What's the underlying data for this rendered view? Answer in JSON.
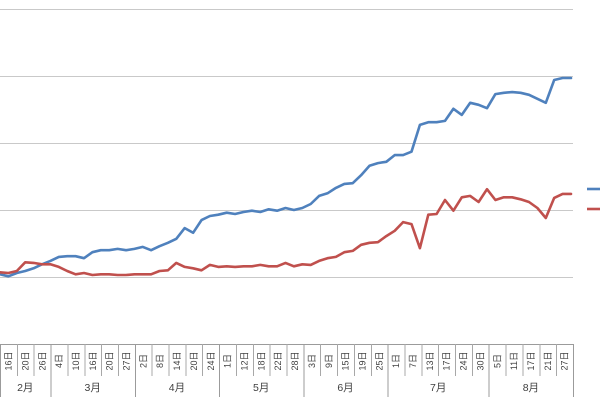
{
  "chart_data": {
    "type": "line",
    "title": "",
    "note": "left and right edges of chart are cropped; y-axis value labels and legend text not visible",
    "x_axis": {
      "tick_labels": [
        "16日",
        "20日",
        "26日",
        "4日",
        "10日",
        "16日",
        "20日",
        "27日",
        "2日",
        "8日",
        "14日",
        "20日",
        "24日",
        "1日",
        "12日",
        "18日",
        "22日",
        "28日",
        "3日",
        "9日",
        "15日",
        "19日",
        "25日",
        "1日",
        "7日",
        "13日",
        "17日",
        "24日",
        "30日",
        "5日",
        "11日",
        "17日",
        "21日",
        "27日"
      ],
      "month_groups": [
        {
          "label": "2月",
          "span": 3
        },
        {
          "label": "3月",
          "span": 5
        },
        {
          "label": "4月",
          "span": 5
        },
        {
          "label": "5月",
          "span": 5
        },
        {
          "label": "6月",
          "span": 5
        },
        {
          "label": "7月",
          "span": 6
        },
        {
          "label": "8月",
          "span": 5
        }
      ]
    },
    "y_axis": {
      "labels_visible": false,
      "gridlines": 5,
      "unit": "gridline-interval (axis labels cropped out of image)",
      "ylim": [
        0,
        5
      ]
    },
    "grid": true,
    "legend": {
      "position": "right",
      "clipped": true
    },
    "series": [
      {
        "id": "series-blue",
        "color": "#4f81bd",
        "values": [
          1.04,
          1.01,
          1.06,
          1.09,
          1.13,
          1.19,
          1.24,
          1.3,
          1.31,
          1.31,
          1.28,
          1.37,
          1.4,
          1.4,
          1.42,
          1.4,
          1.42,
          1.45,
          1.4,
          1.46,
          1.51,
          1.57,
          1.73,
          1.66,
          1.85,
          1.91,
          1.93,
          1.96,
          1.94,
          1.97,
          1.99,
          1.97,
          2.01,
          1.99,
          2.03,
          2.0,
          2.03,
          2.09,
          2.21,
          2.25,
          2.33,
          2.39,
          2.4,
          2.52,
          2.66,
          2.7,
          2.72,
          2.82,
          2.82,
          2.87,
          3.27,
          3.31,
          3.31,
          3.33,
          3.51,
          3.42,
          3.6,
          3.57,
          3.52,
          3.73,
          3.75,
          3.76,
          3.75,
          3.72,
          3.66,
          3.6,
          3.94,
          3.97,
          3.97
        ]
      },
      {
        "id": "series-red",
        "color": "#c0504d",
        "values": [
          1.07,
          1.06,
          1.09,
          1.22,
          1.21,
          1.19,
          1.19,
          1.15,
          1.09,
          1.04,
          1.06,
          1.03,
          1.04,
          1.04,
          1.03,
          1.03,
          1.04,
          1.04,
          1.04,
          1.09,
          1.1,
          1.21,
          1.15,
          1.13,
          1.1,
          1.18,
          1.15,
          1.16,
          1.15,
          1.16,
          1.16,
          1.18,
          1.16,
          1.16,
          1.21,
          1.16,
          1.19,
          1.18,
          1.24,
          1.28,
          1.3,
          1.37,
          1.39,
          1.48,
          1.51,
          1.52,
          1.61,
          1.69,
          1.82,
          1.79,
          1.43,
          1.93,
          1.94,
          2.15,
          1.99,
          2.19,
          2.21,
          2.12,
          2.31,
          2.15,
          2.19,
          2.19,
          2.16,
          2.12,
          2.03,
          1.88,
          2.18,
          2.24,
          2.24
        ]
      }
    ],
    "colors": {
      "background": "#ffffff",
      "gridline": "#c9c9c9",
      "axis": "#9b9b9b",
      "label_text": "#3f3f3f"
    }
  }
}
